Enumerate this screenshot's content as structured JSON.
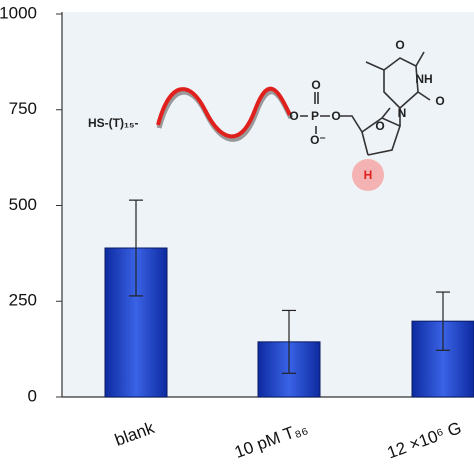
{
  "chart_data": {
    "type": "bar",
    "categories": [
      "blank",
      "10 pM T₈₆",
      "12 ×10⁶ G"
    ],
    "values": [
      389,
      144,
      198
    ],
    "errors": [
      125,
      82,
      76
    ],
    "color": "#1f3fbf",
    "ylim": [
      0,
      1000
    ],
    "yticks": [
      0,
      250,
      500,
      750,
      1000
    ],
    "inset": {
      "strand": "HS-(T)₁₅-",
      "site": "H",
      "atoms": [
        "O",
        "P",
        "O",
        "O⁻",
        "O",
        "O",
        "N",
        "NH",
        "O",
        "O"
      ]
    }
  }
}
